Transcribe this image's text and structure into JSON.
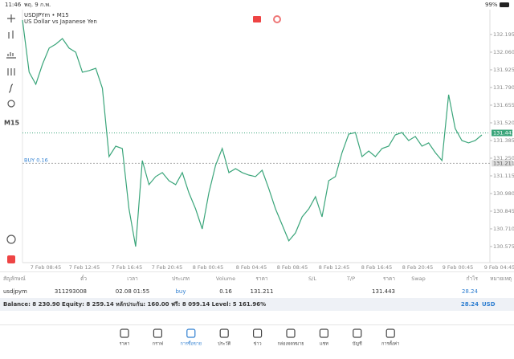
{
  "status": {
    "time": "11:46",
    "date": "พฤ. 9 ก.พ.",
    "battery": "99%"
  },
  "chart": {
    "type": "line",
    "symbol": "USDJPYm • M15",
    "description": "US Dollar vs Japanese Yen",
    "timeframe": "M15",
    "color": "#3aa57a",
    "values": [
      132.305,
      131.907,
      131.815,
      131.968,
      132.091,
      132.121,
      132.164,
      132.091,
      132.06,
      131.907,
      131.919,
      131.937,
      131.784,
      131.262,
      131.342,
      131.324,
      130.863,
      130.575,
      131.232,
      131.048,
      131.109,
      131.14,
      131.078,
      131.048,
      131.14,
      130.986,
      130.863,
      130.71,
      130.986,
      131.195,
      131.324,
      131.14,
      131.17,
      131.14,
      131.121,
      131.109,
      131.158,
      131.017,
      130.863,
      130.741,
      130.618,
      130.679,
      130.802,
      130.863,
      130.956,
      130.802,
      131.078,
      131.109,
      131.293,
      131.434,
      131.446,
      131.262,
      131.305,
      131.262,
      131.324,
      131.342,
      131.428,
      131.446,
      131.385,
      131.416,
      131.342,
      131.367,
      131.293,
      131.232,
      131.735,
      131.477,
      131.385,
      131.367,
      131.385,
      131.428
    ],
    "ylim": [
      130.452,
      132.385
    ],
    "yticks": [
      132.195,
      {
        "value": 132.06,
        "label": "132.060"
      },
      131.925,
      {
        "value": 131.79,
        "label": "131.790"
      },
      131.655,
      {
        "value": 131.52,
        "label": "131.520"
      },
      131.385,
      {
        "value": 131.25,
        "label": "131.250"
      },
      131.115,
      {
        "value": 130.98,
        "label": "130.980"
      },
      130.845,
      {
        "value": 130.71,
        "label": "130.710"
      },
      130.575
    ],
    "categories": [
      "7 Feb 08:45",
      "7 Feb 12:45",
      "7 Feb 16:45",
      "7 Feb 20:45",
      "8 Feb 00:45",
      "8 Feb 04:45",
      "8 Feb 08:45",
      "8 Feb 12:45",
      "8 Feb 16:45",
      "8 Feb 20:45",
      "9 Feb 00:45",
      "9 Feb 04:45"
    ],
    "bid": 131.443,
    "order": {
      "label": "BUY 0.16",
      "price": 131.211
    }
  },
  "table": {
    "header": [
      "สัญลักษณ์",
      "ตั๋ว",
      "เวลา",
      "ประเภท",
      "Volume",
      "ราคา",
      "S/L",
      "T/P",
      "ราคา",
      "Swap",
      "กำไร",
      "หมายเหตุ"
    ],
    "rows": [
      [
        "usdjpym",
        "311293008",
        "02.08 01:55",
        "buy",
        "0.16",
        "131.211",
        "",
        "",
        "131.443",
        "",
        "28.24",
        ""
      ]
    ],
    "summary": {
      "text": "Balance: 8 230.90 Equity: 8 259.14 หลักประกัน: 160.00 ฟรี: 8 099.14 Level: 5 161.96%",
      "profit": "28.24",
      "currency": "USD"
    }
  },
  "tabs": [
    "ราคา",
    "กราฟ",
    "การซื้อขาย",
    "ประวัติ",
    "ข่าว",
    "กล่องจดหมาย",
    "แชท",
    "บัญชี",
    "การตั้งค่า"
  ],
  "active_tab": 2
}
